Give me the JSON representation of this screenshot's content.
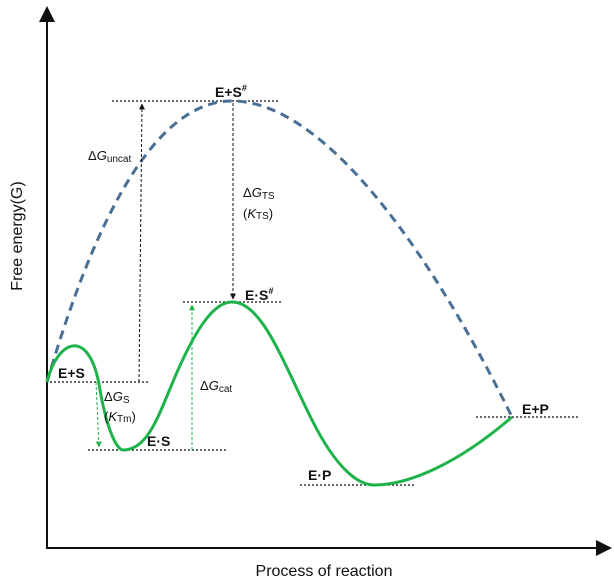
{
  "axes": {
    "x_title": "Process of reaction",
    "y_title": "Free energy(G)"
  },
  "states": {
    "es_plus": "E+S",
    "es_ts_uncat": "E+S",
    "es_ts_uncat_sup": "#",
    "es_complex": "E·S",
    "es_ts_cat": "E·S",
    "es_ts_cat_sup": "#",
    "ep_complex": "E·P",
    "ep_plus": "E+P"
  },
  "annotations": {
    "delta": "Δ",
    "g_uncat_main": "G",
    "g_uncat_sub": "uncat",
    "g_ts_main": "G",
    "g_ts_sub": "TS",
    "k_ts_open": "(",
    "k_ts_main": "K",
    "k_ts_sub": "TS",
    "k_ts_close": ")",
    "g_s_main": "G",
    "g_s_sub": "S",
    "k_tm_open": "(",
    "k_tm_main": "K",
    "k_tm_sub": "Tm",
    "k_tm_close": ")",
    "g_cat_main": "G",
    "g_cat_sub": "cat"
  },
  "colors": {
    "catalyzed_curve": "#1db34a",
    "uncatalyzed_curve": "#4a6f95",
    "guide": "#111111"
  }
}
